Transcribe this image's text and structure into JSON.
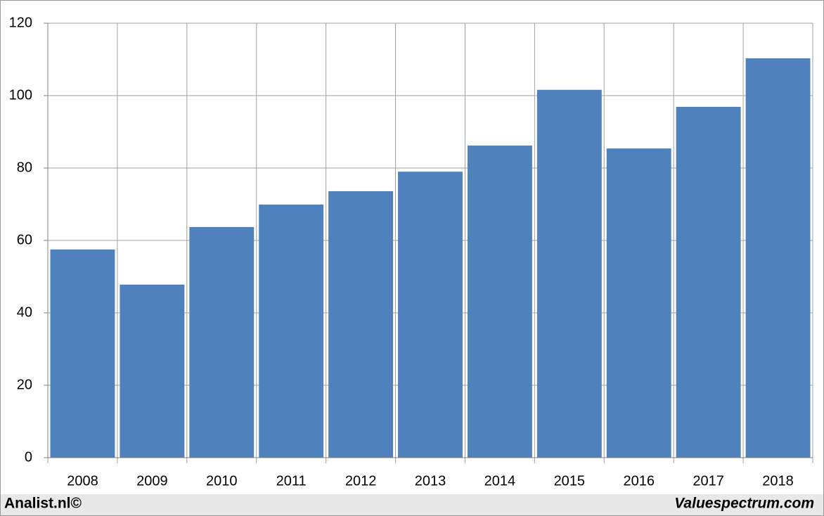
{
  "chart_data": {
    "type": "bar",
    "categories": [
      "2008",
      "2009",
      "2010",
      "2011",
      "2012",
      "2013",
      "2014",
      "2015",
      "2016",
      "2017",
      "2018"
    ],
    "values": [
      57.5,
      47.8,
      63.7,
      69.9,
      73.6,
      79.0,
      86.2,
      101.6,
      85.4,
      96.9,
      110.3
    ],
    "color": "#4f81bd",
    "ylim": [
      0,
      120
    ],
    "yticks": [
      0,
      20,
      40,
      60,
      80,
      100,
      120
    ],
    "grid": true,
    "footer_left": "Analist.nl©",
    "footer_right": "Valuespectrum.com"
  }
}
